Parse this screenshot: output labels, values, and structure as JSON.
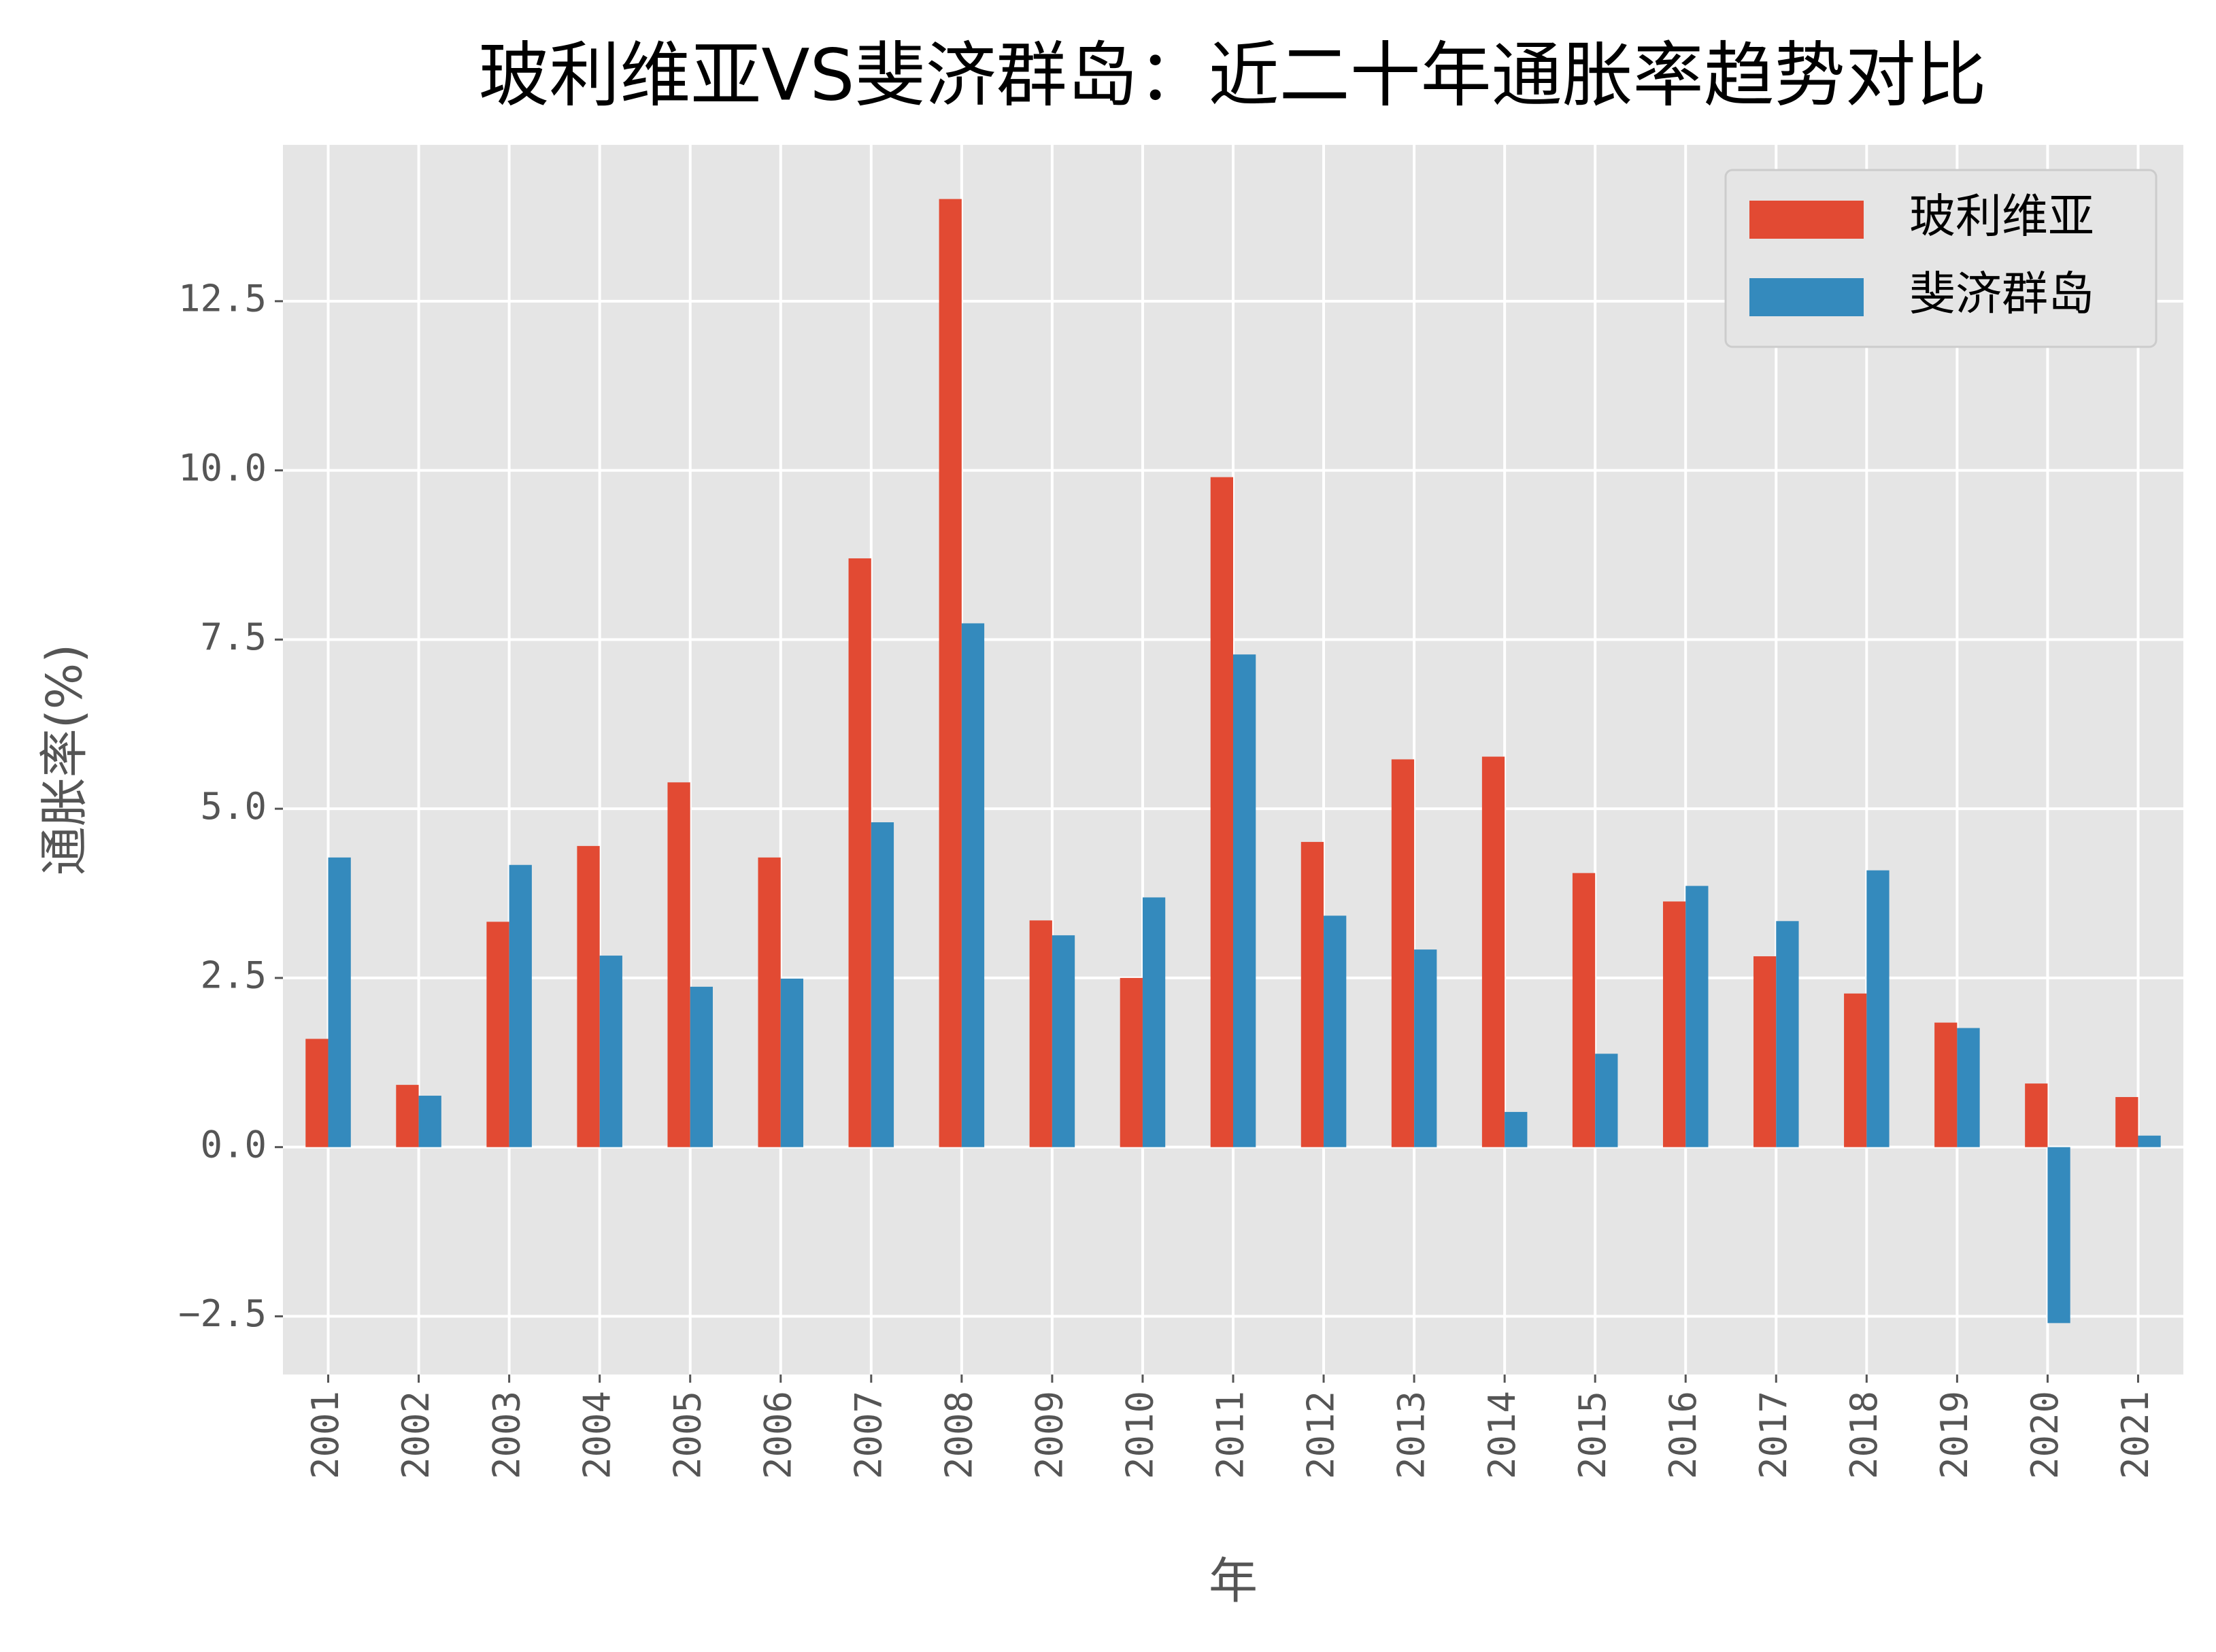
{
  "chart_data": {
    "type": "bar",
    "title": "玻利维亚VS斐济群岛：近二十年通胀率趋势对比",
    "xlabel": "年",
    "ylabel": "通胀率(%)",
    "categories": [
      "2001",
      "2002",
      "2003",
      "2004",
      "2005",
      "2006",
      "2007",
      "2008",
      "2009",
      "2010",
      "2011",
      "2012",
      "2013",
      "2014",
      "2015",
      "2016",
      "2017",
      "2018",
      "2019",
      "2020",
      "2021"
    ],
    "series": [
      {
        "name": "玻利维亚",
        "color": "#E24A33",
        "values": [
          1.6,
          0.92,
          3.33,
          4.45,
          5.39,
          4.28,
          8.7,
          14.01,
          3.35,
          2.5,
          9.9,
          4.51,
          5.73,
          5.77,
          4.05,
          3.63,
          2.82,
          2.27,
          1.84,
          0.94,
          0.74
        ]
      },
      {
        "name": "斐济群岛",
        "color": "#348ABD",
        "values": [
          4.28,
          0.76,
          4.17,
          2.83,
          2.37,
          2.49,
          4.8,
          7.74,
          3.13,
          3.69,
          7.28,
          3.42,
          2.92,
          0.52,
          1.38,
          3.86,
          3.34,
          4.09,
          1.76,
          -2.6,
          0.17
        ]
      }
    ],
    "ylim": [
      -3.36,
      14.81
    ],
    "yticks": [
      {
        "value": -2.5,
        "label": "−2.5"
      },
      {
        "value": 0,
        "label": "0.0"
      },
      2.5,
      {
        "value": 5,
        "label": "5.0"
      },
      7.5,
      {
        "value": 10,
        "label": "10.0"
      },
      12.5
    ],
    "grid": true,
    "legend": "upper right"
  }
}
